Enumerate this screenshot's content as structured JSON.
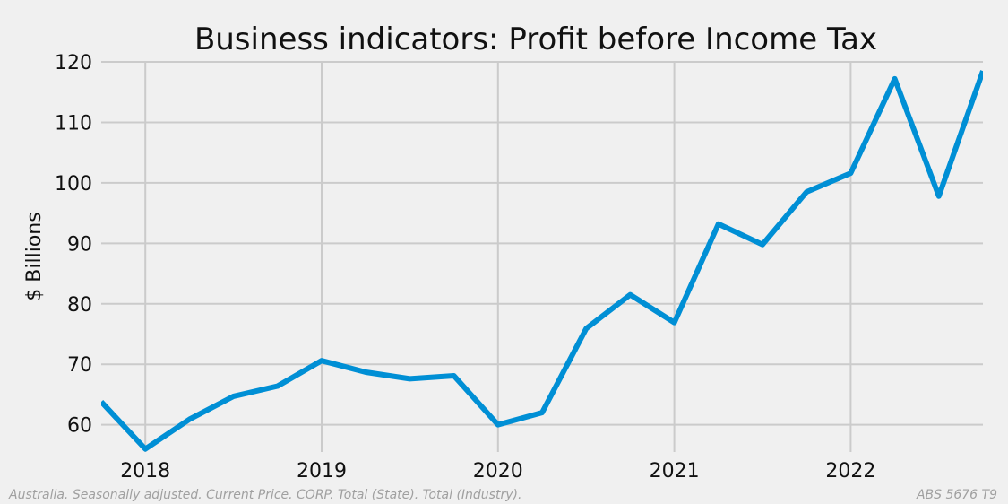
{
  "chart_data": {
    "type": "line",
    "title": "Business indicators: Profit before Income Tax",
    "xlabel": "",
    "ylabel": "$ Billions",
    "x": [
      "2017-10",
      "2018-01",
      "2018-04",
      "2018-07",
      "2018-10",
      "2019-01",
      "2019-04",
      "2019-07",
      "2019-10",
      "2020-01",
      "2020-04",
      "2020-07",
      "2020-10",
      "2021-01",
      "2021-04",
      "2021-07",
      "2021-10",
      "2022-01",
      "2022-04",
      "2022-07",
      "2022-10"
    ],
    "series": [
      {
        "values": [
          63.8,
          56.0,
          60.9,
          64.7,
          66.4,
          70.6,
          68.7,
          67.6,
          68.1,
          60.0,
          62.0,
          75.9,
          81.5,
          76.9,
          93.2,
          89.8,
          98.5,
          101.6,
          117.2,
          97.8,
          118.5
        ]
      }
    ],
    "x_ticks": [
      "2018",
      "2019",
      "2020",
      "2021",
      "2022"
    ],
    "y_ticks": [
      60,
      70,
      80,
      90,
      100,
      110,
      120
    ],
    "xlim": [
      "2017-10",
      "2022-10"
    ],
    "ylim": [
      55.5,
      120
    ],
    "grid": true,
    "line_color": "#008fd5",
    "grid_color": "#cbcbcb",
    "background": "#f0f0f0"
  },
  "footnote_left": "Australia. Seasonally adjusted. Current Price. CORP. Total (State). Total (Industry).",
  "footnote_right": "ABS 5676 T9"
}
